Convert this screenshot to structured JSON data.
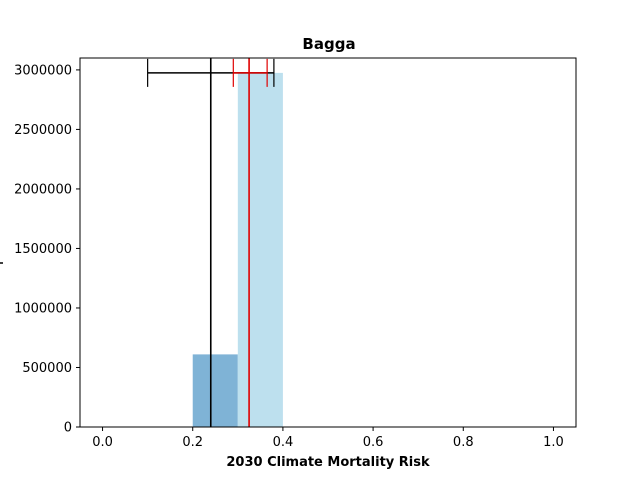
{
  "chart_data": {
    "type": "bar",
    "title": "Bagga",
    "xlabel": "2030 Climate Mortality Risk",
    "ylabel": "",
    "xlim": [
      -0.05,
      1.05
    ],
    "ylim": [
      0,
      3100000
    ],
    "x_ticks": [
      0.0,
      0.2,
      0.4,
      0.6,
      0.8,
      1.0
    ],
    "x_tick_labels": [
      "0.0",
      "0.2",
      "0.4",
      "0.6",
      "0.8",
      "1.0"
    ],
    "y_ticks": [
      0,
      500000,
      1000000,
      1500000,
      2000000,
      2500000,
      3000000
    ],
    "y_tick_labels": [
      "0",
      "500000",
      "1000000",
      "1500000",
      "2000000",
      "2500000",
      "3000000"
    ],
    "grid": false,
    "bars": [
      {
        "x0": 0.2,
        "x1": 0.3,
        "value": 610000,
        "color": "#7fb3d6"
      },
      {
        "x0": 0.3,
        "x1": 0.4,
        "value": 2975000,
        "color": "#bde0ee"
      },
      {
        "x0": 0.5,
        "x1": 0.6,
        "value": 4000,
        "color": "#f3e3a8"
      }
    ],
    "reference_lines": [
      {
        "x": 0.24,
        "color": "#000000",
        "interval": [
          0.1,
          0.38
        ],
        "y": 2975000
      },
      {
        "x": 0.325,
        "color": "#e00000",
        "interval": [
          0.29,
          0.365
        ],
        "y": 2975000
      }
    ]
  }
}
